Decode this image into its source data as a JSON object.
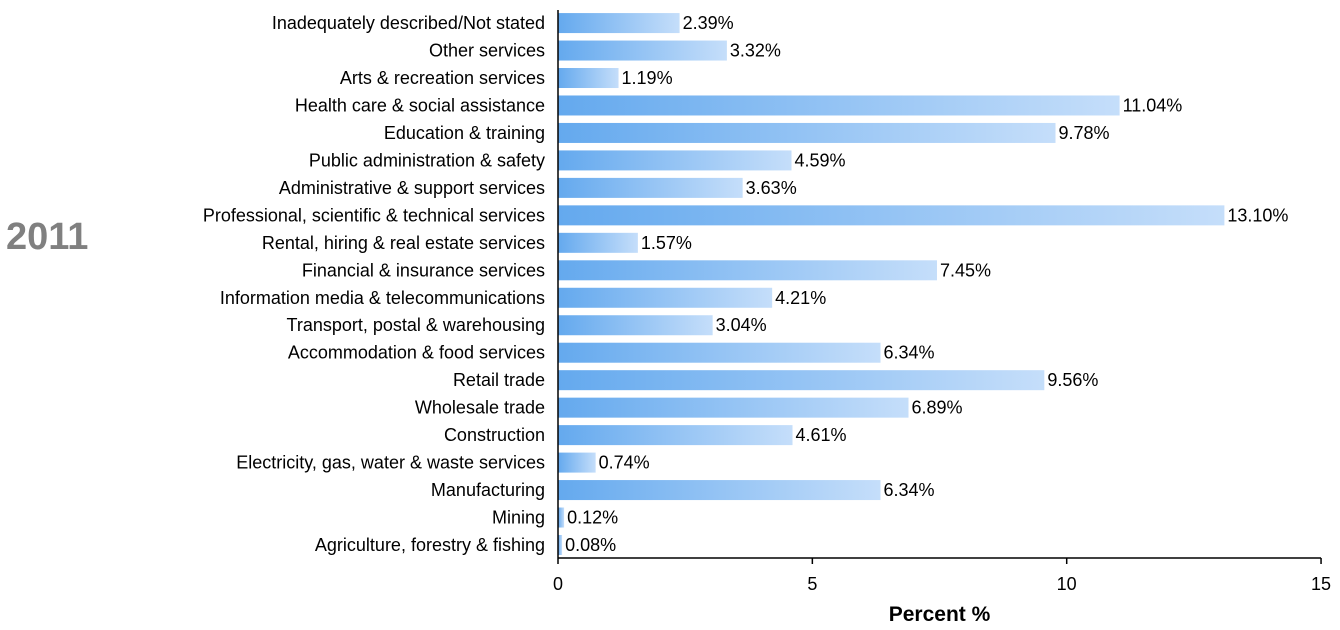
{
  "chart_data": {
    "type": "bar",
    "orientation": "horizontal",
    "year_label": "2011",
    "categories": [
      "Agriculture, forestry & fishing",
      "Mining",
      "Manufacturing",
      "Electricity, gas, water & waste services",
      "Construction",
      "Wholesale trade",
      "Retail trade",
      "Accommodation & food services",
      "Transport, postal & warehousing",
      "Information media & telecommunications",
      "Financial & insurance services",
      "Rental, hiring & real estate services",
      "Professional, scientific & technical services",
      "Administrative & support services",
      "Public administration & safety",
      "Education & training",
      "Health care & social assistance",
      "Arts & recreation services",
      "Other services",
      "Inadequately described/Not stated"
    ],
    "values": [
      0.08,
      0.12,
      6.34,
      0.74,
      4.61,
      6.89,
      9.56,
      6.34,
      3.04,
      4.21,
      7.45,
      1.57,
      13.1,
      3.63,
      4.59,
      9.78,
      11.04,
      1.19,
      3.32,
      2.39
    ],
    "value_labels": [
      "0.08%",
      "0.12%",
      "6.34%",
      "0.74%",
      "4.61%",
      "6.89%",
      "9.56%",
      "6.34%",
      "3.04%",
      "4.21%",
      "7.45%",
      "1.57%",
      "13.10%",
      "3.63%",
      "4.59%",
      "9.78%",
      "11.04%",
      "1.19%",
      "3.32%",
      "2.39%"
    ],
    "xlabel": "Percent %",
    "ylabel": "",
    "xlim": [
      0,
      15
    ],
    "xticks": [
      0,
      5,
      10,
      15
    ],
    "xtick_labels": [
      "0",
      "5",
      "10",
      "15"
    ],
    "grid": false,
    "legend": "none",
    "colors": {
      "bar_start": "#64a9ee",
      "bar_end": "#c5defa",
      "axis": "#000000",
      "year_label": "#808080"
    }
  }
}
